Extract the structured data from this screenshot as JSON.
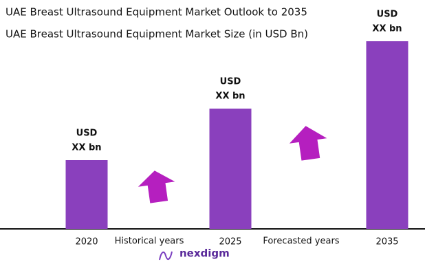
{
  "chart_data": {
    "type": "bar",
    "title": "UAE Breast Ultrasound Equipment Market Outlook to 2035",
    "subtitle": "UAE Breast Ultrasound Equipment Market Size (in USD Bn)",
    "categories": [
      "2020",
      "2025",
      "2035"
    ],
    "values": [
      100,
      175,
      273
    ],
    "value_labels": [
      [
        "USD",
        "XX bn"
      ],
      [
        "USD",
        "XX bn"
      ],
      [
        "USD",
        "XX bn"
      ]
    ],
    "color": "#8a40bd",
    "ylim": [
      0,
      280
    ],
    "annotations": [
      "Historical years",
      "Forecasted years"
    ],
    "logo": "nexdigm"
  }
}
